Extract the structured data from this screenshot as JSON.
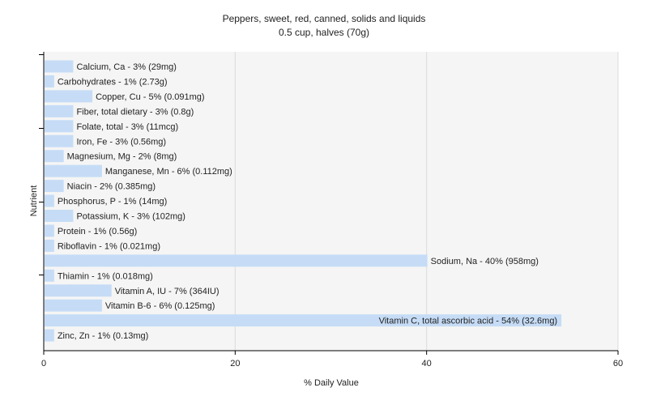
{
  "chart_data": {
    "type": "bar",
    "orientation": "horizontal",
    "title": "Peppers, sweet, red, canned, solids and liquids",
    "subtitle": "0.5 cup, halves (70g)",
    "xlabel": "% Daily Value",
    "ylabel": "Nutrient",
    "xlim": [
      0,
      60
    ],
    "xticks": [
      0,
      20,
      40,
      60
    ],
    "grid": true,
    "colors": {
      "bar": "#c6dcf6",
      "plot_background": "#f5f5f5",
      "gridline": "#dcdcdc",
      "axis": "#000000"
    },
    "categories": [
      "Calcium, Ca - 3% (29mg)",
      "Carbohydrates - 1% (2.73g)",
      "Copper, Cu - 5% (0.091mg)",
      "Fiber, total dietary - 3% (0.8g)",
      "Folate, total - 3% (11mcg)",
      "Iron, Fe - 3% (0.56mg)",
      "Magnesium, Mg - 2% (8mg)",
      "Manganese, Mn - 6% (0.112mg)",
      "Niacin - 2% (0.385mg)",
      "Phosphorus, P - 1% (14mg)",
      "Potassium, K - 3% (102mg)",
      "Protein - 1% (0.56g)",
      "Riboflavin - 1% (0.021mg)",
      "Sodium, Na - 40% (958mg)",
      "Thiamin - 1% (0.018mg)",
      "Vitamin A, IU - 7% (364IU)",
      "Vitamin B-6 - 6% (0.125mg)",
      "Vitamin C, total ascorbic acid - 54% (32.6mg)",
      "Zinc, Zn - 1% (0.13mg)"
    ],
    "values": [
      3,
      1,
      5,
      3,
      3,
      3,
      2,
      6,
      2,
      1,
      3,
      1,
      1,
      40,
      1,
      7,
      6,
      54,
      1
    ]
  }
}
